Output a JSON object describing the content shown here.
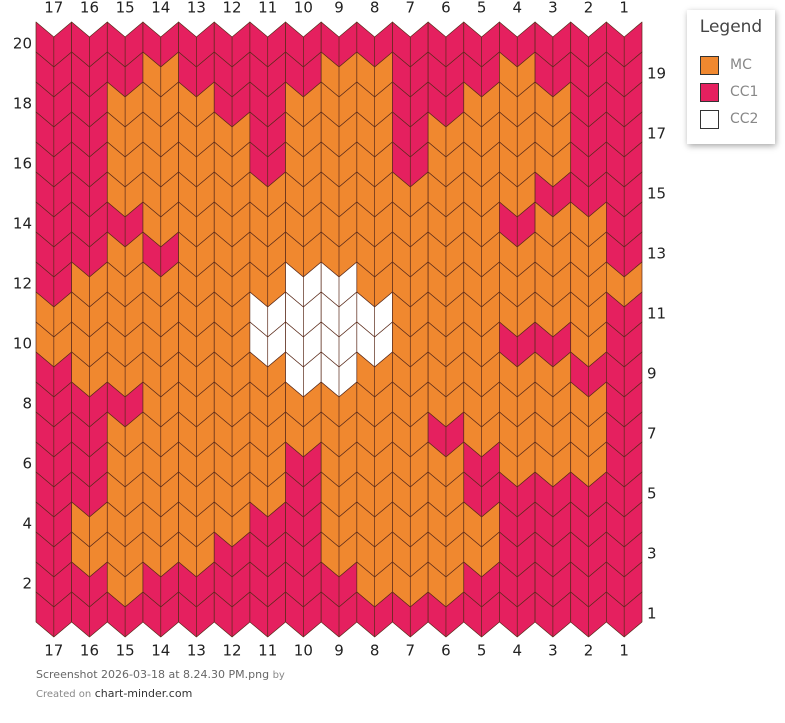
{
  "columns": [
    17,
    16,
    15,
    14,
    13,
    12,
    11,
    10,
    9,
    8,
    7,
    6,
    5,
    4,
    3,
    2,
    1
  ],
  "legend": {
    "title": "Legend",
    "entries": [
      {
        "label": "MC",
        "color": "#f0882f"
      },
      {
        "label": "CC1",
        "color": "#e5205f"
      },
      {
        "label": "CC2",
        "color": "#ffffff"
      }
    ]
  },
  "rows": [
    {
      "number": 20,
      "stitches": [
        "CC1",
        "CC1",
        "CC1",
        "CC1",
        "CC1",
        "CC1",
        "CC1",
        "CC1",
        "CC1",
        "CC1",
        "CC1",
        "CC1",
        "CC1",
        "CC1",
        "CC1",
        "CC1",
        "CC1"
      ]
    },
    {
      "number": 19,
      "stitches": [
        "CC1",
        "CC1",
        "CC1",
        "MC",
        "CC1",
        "CC1",
        "CC1",
        "CC1",
        "MC",
        "MC",
        "CC1",
        "CC1",
        "CC1",
        "MC",
        "CC1",
        "CC1",
        "CC1"
      ]
    },
    {
      "number": 18,
      "stitches": [
        "CC1",
        "CC1",
        "MC",
        "MC",
        "MC",
        "CC1",
        "CC1",
        "MC",
        "MC",
        "MC",
        "CC1",
        "CC1",
        "MC",
        "MC",
        "MC",
        "CC1",
        "CC1"
      ]
    },
    {
      "number": 17,
      "stitches": [
        "CC1",
        "CC1",
        "MC",
        "MC",
        "MC",
        "MC",
        "CC1",
        "MC",
        "MC",
        "MC",
        "CC1",
        "MC",
        "MC",
        "MC",
        "MC",
        "CC1",
        "CC1"
      ]
    },
    {
      "number": 16,
      "stitches": [
        "CC1",
        "CC1",
        "MC",
        "MC",
        "MC",
        "MC",
        "CC1",
        "MC",
        "MC",
        "MC",
        "CC1",
        "MC",
        "MC",
        "MC",
        "MC",
        "CC1",
        "CC1"
      ]
    },
    {
      "number": 15,
      "stitches": [
        "CC1",
        "CC1",
        "MC",
        "MC",
        "MC",
        "MC",
        "MC",
        "MC",
        "MC",
        "MC",
        "MC",
        "MC",
        "MC",
        "MC",
        "CC1",
        "CC1",
        "CC1"
      ]
    },
    {
      "number": 14,
      "stitches": [
        "CC1",
        "CC1",
        "CC1",
        "MC",
        "MC",
        "MC",
        "MC",
        "MC",
        "MC",
        "MC",
        "MC",
        "MC",
        "MC",
        "CC1",
        "MC",
        "MC",
        "CC1"
      ]
    },
    {
      "number": 13,
      "stitches": [
        "CC1",
        "CC1",
        "MC",
        "CC1",
        "MC",
        "MC",
        "MC",
        "MC",
        "MC",
        "MC",
        "MC",
        "MC",
        "MC",
        "MC",
        "MC",
        "MC",
        "CC1"
      ]
    },
    {
      "number": 12,
      "stitches": [
        "CC1",
        "MC",
        "MC",
        "MC",
        "MC",
        "MC",
        "MC",
        "CC2",
        "CC2",
        "MC",
        "MC",
        "MC",
        "MC",
        "MC",
        "MC",
        "MC",
        "MC"
      ]
    },
    {
      "number": 11,
      "stitches": [
        "MC",
        "MC",
        "MC",
        "MC",
        "MC",
        "MC",
        "CC2",
        "CC2",
        "CC2",
        "CC2",
        "MC",
        "MC",
        "MC",
        "MC",
        "MC",
        "MC",
        "CC1"
      ]
    },
    {
      "number": 10,
      "stitches": [
        "MC",
        "MC",
        "MC",
        "MC",
        "MC",
        "MC",
        "CC2",
        "CC2",
        "CC2",
        "CC2",
        "MC",
        "MC",
        "MC",
        "CC1",
        "CC1",
        "MC",
        "CC1"
      ]
    },
    {
      "number": 9,
      "stitches": [
        "CC1",
        "MC",
        "MC",
        "MC",
        "MC",
        "MC",
        "MC",
        "CC2",
        "CC2",
        "MC",
        "MC",
        "MC",
        "MC",
        "MC",
        "MC",
        "CC1",
        "CC1"
      ]
    },
    {
      "number": 8,
      "stitches": [
        "CC1",
        "CC1",
        "CC1",
        "MC",
        "MC",
        "MC",
        "MC",
        "MC",
        "MC",
        "MC",
        "MC",
        "MC",
        "MC",
        "MC",
        "MC",
        "MC",
        "CC1"
      ]
    },
    {
      "number": 7,
      "stitches": [
        "CC1",
        "CC1",
        "MC",
        "MC",
        "MC",
        "MC",
        "MC",
        "MC",
        "MC",
        "MC",
        "MC",
        "CC1",
        "MC",
        "MC",
        "MC",
        "MC",
        "CC1"
      ]
    },
    {
      "number": 6,
      "stitches": [
        "CC1",
        "CC1",
        "MC",
        "MC",
        "MC",
        "MC",
        "MC",
        "CC1",
        "MC",
        "MC",
        "MC",
        "MC",
        "CC1",
        "MC",
        "MC",
        "MC",
        "CC1"
      ]
    },
    {
      "number": 5,
      "stitches": [
        "CC1",
        "CC1",
        "MC",
        "MC",
        "MC",
        "MC",
        "MC",
        "CC1",
        "MC",
        "MC",
        "MC",
        "MC",
        "CC1",
        "CC1",
        "CC1",
        "CC1",
        "CC1"
      ]
    },
    {
      "number": 4,
      "stitches": [
        "CC1",
        "MC",
        "MC",
        "MC",
        "MC",
        "MC",
        "CC1",
        "CC1",
        "MC",
        "MC",
        "MC",
        "MC",
        "MC",
        "CC1",
        "CC1",
        "CC1",
        "CC1"
      ]
    },
    {
      "number": 3,
      "stitches": [
        "CC1",
        "MC",
        "MC",
        "MC",
        "MC",
        "CC1",
        "CC1",
        "CC1",
        "MC",
        "MC",
        "MC",
        "MC",
        "MC",
        "CC1",
        "CC1",
        "CC1",
        "CC1"
      ]
    },
    {
      "number": 2,
      "stitches": [
        "CC1",
        "CC1",
        "MC",
        "CC1",
        "CC1",
        "CC1",
        "CC1",
        "CC1",
        "CC1",
        "MC",
        "MC",
        "MC",
        "CC1",
        "CC1",
        "CC1",
        "CC1",
        "CC1"
      ]
    },
    {
      "number": 1,
      "stitches": [
        "CC1",
        "CC1",
        "CC1",
        "CC1",
        "CC1",
        "CC1",
        "CC1",
        "CC1",
        "CC1",
        "CC1",
        "CC1",
        "CC1",
        "CC1",
        "CC1",
        "CC1",
        "CC1",
        "CC1"
      ]
    }
  ],
  "footer": {
    "file": "Screenshot 2026-03-18 at 8.24.30 PM.png",
    "by": "by",
    "created": "Created on",
    "site": "chart-minder.com"
  }
}
